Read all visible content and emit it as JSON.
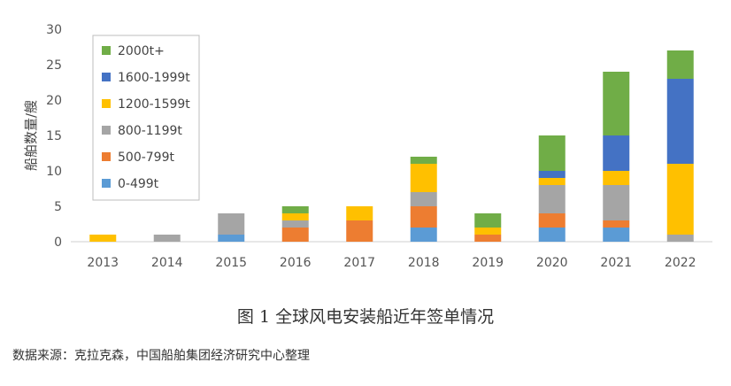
{
  "chart_data": {
    "type": "bar",
    "stacked": true,
    "ylabel": "船舶数量/艘",
    "ylim": [
      0,
      30
    ],
    "yticks": [
      0,
      5,
      10,
      15,
      20,
      25,
      30
    ],
    "grid": false,
    "legend_position": "top-left",
    "categories": [
      "2013",
      "2014",
      "2015",
      "2016",
      "2017",
      "2018",
      "2019",
      "2020",
      "2021",
      "2022"
    ],
    "series": [
      {
        "name": "0-499t",
        "color": "#5b9bd5",
        "values": [
          0,
          0,
          1,
          0,
          0,
          2,
          0,
          2,
          2,
          0
        ]
      },
      {
        "name": "500-799t",
        "color": "#ed7d31",
        "values": [
          0,
          0,
          0,
          2,
          3,
          3,
          1,
          2,
          1,
          0
        ]
      },
      {
        "name": "800-1199t",
        "color": "#a5a5a5",
        "values": [
          0,
          1,
          3,
          1,
          0,
          2,
          0,
          4,
          5,
          1
        ]
      },
      {
        "name": "1200-1599t",
        "color": "#ffc000",
        "values": [
          1,
          0,
          0,
          1,
          2,
          4,
          1,
          1,
          2,
          10
        ]
      },
      {
        "name": "1600-1999t",
        "color": "#4472c4",
        "values": [
          0,
          0,
          0,
          0,
          0,
          0,
          0,
          1,
          5,
          12
        ]
      },
      {
        "name": "2000t+",
        "color": "#70ad47",
        "values": [
          0,
          0,
          0,
          1,
          0,
          1,
          2,
          5,
          9,
          4
        ]
      }
    ]
  },
  "caption": "图 1 全球风电安装船近年签单情况",
  "source": "数据来源：克拉克森，中国船舶集团经济研究中心整理"
}
